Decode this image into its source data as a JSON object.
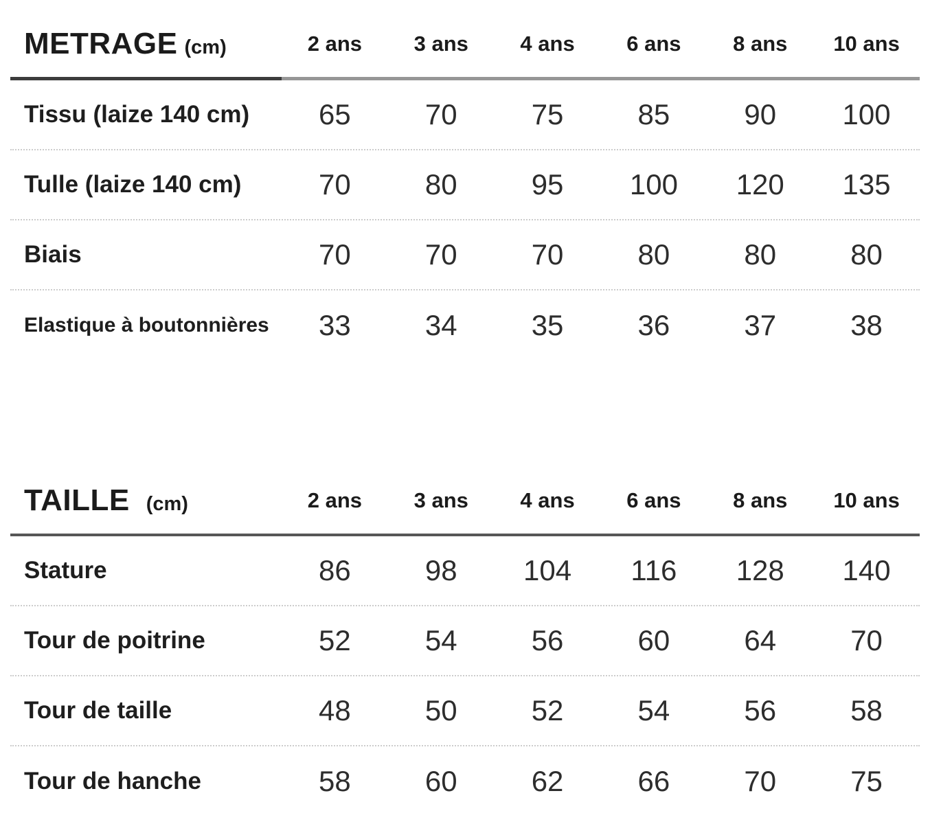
{
  "metrage": {
    "title": "METRAGE",
    "unit": "(cm)",
    "columns": [
      "2 ans",
      "3 ans",
      "4 ans",
      "6 ans",
      "8 ans",
      "10 ans"
    ],
    "rows": [
      {
        "label": "Tissu (laize 140 cm)",
        "values": [
          "65",
          "70",
          "75",
          "85",
          "90",
          "100"
        ]
      },
      {
        "label": "Tulle (laize 140 cm)",
        "values": [
          "70",
          "80",
          "95",
          "100",
          "120",
          "135"
        ]
      },
      {
        "label": "Biais",
        "values": [
          "70",
          "70",
          "70",
          "80",
          "80",
          "80"
        ]
      },
      {
        "label": "Elastique à boutonnières",
        "values": [
          "33",
          "34",
          "35",
          "36",
          "37",
          "38"
        ]
      }
    ]
  },
  "taille": {
    "title": "TAILLE",
    "unit": "(cm)",
    "columns": [
      "2 ans",
      "3 ans",
      "4 ans",
      "6 ans",
      "8 ans",
      "10 ans"
    ],
    "rows": [
      {
        "label": "Stature",
        "values": [
          "86",
          "98",
          "104",
          "116",
          "128",
          "140"
        ]
      },
      {
        "label": "Tour de poitrine",
        "values": [
          "52",
          "54",
          "56",
          "60",
          "64",
          "70"
        ]
      },
      {
        "label": "Tour de taille",
        "values": [
          "48",
          "50",
          "52",
          "54",
          "56",
          "58"
        ]
      },
      {
        "label": "Tour de hanche",
        "values": [
          "58",
          "60",
          "62",
          "66",
          "70",
          "75"
        ]
      }
    ]
  }
}
